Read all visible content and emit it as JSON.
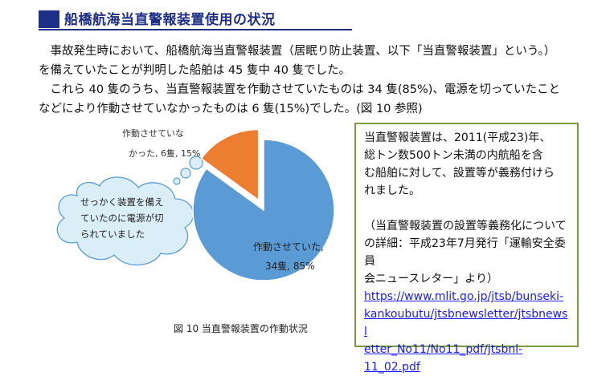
{
  "section": {
    "heading": "船橋航海当直警報装置使用の状況"
  },
  "paragraphs": [
    "　事故発生時において、船橋航海当直警報装置（居眠り防止装置、以下「当直警報装置」という。）",
    "を備えていたことが判明した船舶は 45 隻中 40 隻でした。",
    "　これら 40 隻のうち、当直警報装置を作動させていたものは 34 隻(85%)、電源を切っていたこと",
    "などにより作動させていなかったものは 6 隻(15%)でした。(図 10 参照)"
  ],
  "chart_data": {
    "type": "pie",
    "categories": [
      "作動させていた",
      "作動させていなかった"
    ],
    "values": [
      34,
      6
    ],
    "percent": [
      85,
      15
    ],
    "colors": [
      "#5b9bd5",
      "#ed7d31"
    ],
    "exploded": "作動させていなかった",
    "labels": {
      "active": [
        "作動させていた,",
        "34隻, 85%"
      ],
      "inactive": [
        "作動させていな",
        "かった, 6隻, 15%"
      ]
    },
    "caption": "図 10  当直警報装置の作動状況",
    "thought_bubble": [
      "せっかく装置を備え",
      "ていたのに電源が切",
      "られていました"
    ]
  },
  "infobox": {
    "lines": [
      "当直警報装置は、2011(平成23)年、",
      "総トン数500トン未満の内航船を含",
      "む船舶に対して、設置等が義務付けら",
      "れました。"
    ],
    "note_lines": [
      "（当直警報装置の設置等義務化について",
      "の詳細：平成23年7月発行「運輸安全委員",
      "会ニュースレター」より）"
    ],
    "link_lines": [
      "https://www.mlit.go.jp/jtsb/bunseki-",
      "kankoubutu/jtsbnewsletter/jtsbnewsl",
      "etter_No11/No11_pdf/jtsbnl-",
      "11_02.pdf"
    ],
    "border_color": "#7a9b3a",
    "link_color": "#1a1aff"
  }
}
